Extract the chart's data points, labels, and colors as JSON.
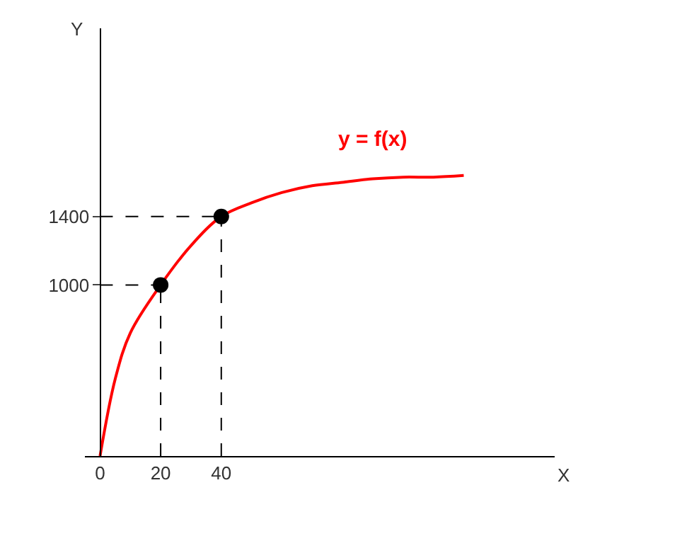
{
  "chart_data": {
    "type": "line",
    "xlabel": "X",
    "ylabel": "Y",
    "xlim": [
      -5,
      150
    ],
    "ylim": [
      0,
      2500
    ],
    "xticks": [
      0,
      20,
      40
    ],
    "yticks": [
      1000,
      1400
    ],
    "grid": false,
    "legend": false,
    "series": [
      {
        "name": "y = f(x)",
        "color": "#ff0000",
        "marker": "none",
        "x": [
          0,
          5,
          10,
          20,
          30,
          40,
          50,
          60,
          70,
          80,
          90,
          100,
          110,
          120
        ],
        "values": [
          0,
          450,
          720,
          1000,
          1230,
          1400,
          1480,
          1540,
          1580,
          1600,
          1620,
          1630,
          1630,
          1640
        ]
      },
      {
        "color": "#000000",
        "type": "scatter",
        "marker": "circle",
        "x": [
          20,
          40
        ],
        "values": [
          1000,
          1400
        ]
      }
    ],
    "ref_lines": [
      {
        "axis": "x",
        "value": 20,
        "label": null,
        "line_style": "dashed",
        "color": "#000000"
      },
      {
        "axis": "x",
        "value": 40,
        "label": null,
        "line_style": "dashed",
        "color": "#000000"
      },
      {
        "axis": "y",
        "value": 1000,
        "label": null,
        "line_style": "dashed",
        "color": "#000000"
      },
      {
        "axis": "y",
        "value": 1400,
        "label": null,
        "line_style": "dashed",
        "color": "#000000"
      }
    ]
  }
}
